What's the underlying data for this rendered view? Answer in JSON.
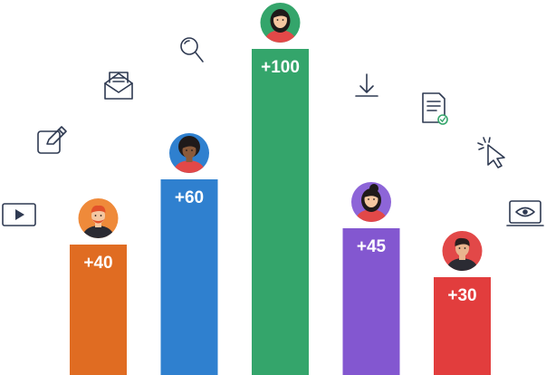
{
  "chart_data": {
    "type": "bar",
    "categories": [
      "",
      "",
      "",
      "",
      ""
    ],
    "values": [
      40,
      60,
      100,
      45,
      30
    ],
    "labels": [
      "+40",
      "+60",
      "+100",
      "+45",
      "+30"
    ],
    "colors": [
      "#e06c22",
      "#2f80cf",
      "#34a56b",
      "#8357d0",
      "#e23d3d"
    ],
    "title": "",
    "xlabel": "",
    "ylabel": "",
    "ylim": [
      0,
      100
    ],
    "grid": false,
    "legend": "none"
  },
  "decorations": {
    "avatars": [
      "avatar-man-beard",
      "avatar-woman-curly",
      "avatar-woman-green",
      "avatar-woman-bun",
      "avatar-man-dark-hair"
    ],
    "icons": [
      "play-icon",
      "edit-icon",
      "mail-icon",
      "search-icon",
      "download-icon",
      "document-check-icon",
      "cursor-click-icon",
      "monitor-eye-icon"
    ],
    "avatar_bg": [
      "#ef8a3a",
      "#2f80cf",
      "#34a56b",
      "#8d65d8",
      "#e24848"
    ]
  }
}
